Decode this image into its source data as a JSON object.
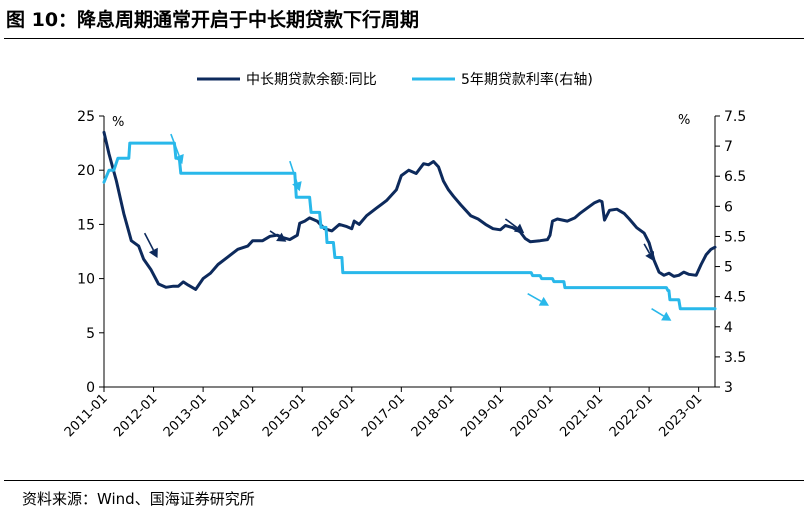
{
  "title": "图 10：降息周期通常开启于中长期贷款下行周期",
  "source": "资料来源：Wind、国海证券研究所",
  "chart_data": {
    "type": "line",
    "left_unit": "%",
    "right_unit": "%",
    "y_left": {
      "min": 0,
      "max": 25,
      "ticks": [
        "0",
        "5",
        "10",
        "15",
        "20",
        "25"
      ]
    },
    "y_right": {
      "min": 3,
      "max": 7.5,
      "ticks": [
        "3",
        "3.5",
        "4",
        "4.5",
        "5",
        "5.5",
        "6",
        "6.5",
        "7",
        "7.5"
      ]
    },
    "x_range": [
      2011.0,
      2023.33
    ],
    "x_ticks": [
      {
        "label": "2011-01",
        "x": 2011.0
      },
      {
        "label": "2012-01",
        "x": 2012.0
      },
      {
        "label": "2013-01",
        "x": 2013.0
      },
      {
        "label": "2014-01",
        "x": 2014.0
      },
      {
        "label": "2015-01",
        "x": 2015.0
      },
      {
        "label": "2016-01",
        "x": 2016.0
      },
      {
        "label": "2017-01",
        "x": 2017.0
      },
      {
        "label": "2018-01",
        "x": 2018.0
      },
      {
        "label": "2019-01",
        "x": 2019.0
      },
      {
        "label": "2020-01",
        "x": 2020.0
      },
      {
        "label": "2021-01",
        "x": 2021.0
      },
      {
        "label": "2022-01",
        "x": 2022.0
      },
      {
        "label": "2023-01",
        "x": 2023.0
      }
    ],
    "series": [
      {
        "name": "中长期贷款余额:同比",
        "axis": "left",
        "color": "#0d2a5c",
        "points": [
          [
            2011.0,
            23.5
          ],
          [
            2011.1,
            21.5
          ],
          [
            2011.25,
            19.0
          ],
          [
            2011.4,
            16.0
          ],
          [
            2011.55,
            13.5
          ],
          [
            2011.7,
            13.0
          ],
          [
            2011.8,
            11.8
          ],
          [
            2011.95,
            10.8
          ],
          [
            2012.1,
            9.5
          ],
          [
            2012.25,
            9.2
          ],
          [
            2012.4,
            9.3
          ],
          [
            2012.5,
            9.3
          ],
          [
            2012.6,
            9.7
          ],
          [
            2012.7,
            9.4
          ],
          [
            2012.85,
            9.0
          ],
          [
            2013.0,
            10.0
          ],
          [
            2013.15,
            10.5
          ],
          [
            2013.3,
            11.3
          ],
          [
            2013.5,
            12.0
          ],
          [
            2013.7,
            12.7
          ],
          [
            2013.9,
            13.0
          ],
          [
            2014.0,
            13.5
          ],
          [
            2014.2,
            13.5
          ],
          [
            2014.35,
            13.9
          ],
          [
            2014.5,
            14.0
          ],
          [
            2014.6,
            13.8
          ],
          [
            2014.75,
            13.6
          ],
          [
            2014.9,
            14.0
          ],
          [
            2014.95,
            15.1
          ],
          [
            2015.05,
            15.3
          ],
          [
            2015.15,
            15.6
          ],
          [
            2015.3,
            15.3
          ],
          [
            2015.45,
            14.6
          ],
          [
            2015.6,
            14.4
          ],
          [
            2015.75,
            15.0
          ],
          [
            2015.9,
            14.8
          ],
          [
            2016.0,
            14.6
          ],
          [
            2016.05,
            15.3
          ],
          [
            2016.15,
            15.0
          ],
          [
            2016.3,
            15.8
          ],
          [
            2016.5,
            16.5
          ],
          [
            2016.7,
            17.2
          ],
          [
            2016.9,
            18.2
          ],
          [
            2017.0,
            19.5
          ],
          [
            2017.15,
            20.0
          ],
          [
            2017.3,
            19.7
          ],
          [
            2017.45,
            20.6
          ],
          [
            2017.55,
            20.5
          ],
          [
            2017.65,
            20.8
          ],
          [
            2017.75,
            20.3
          ],
          [
            2017.85,
            19.0
          ],
          [
            2017.95,
            18.2
          ],
          [
            2018.05,
            17.6
          ],
          [
            2018.2,
            16.8
          ],
          [
            2018.4,
            15.8
          ],
          [
            2018.55,
            15.5
          ],
          [
            2018.7,
            15.0
          ],
          [
            2018.85,
            14.6
          ],
          [
            2019.0,
            14.5
          ],
          [
            2019.1,
            14.9
          ],
          [
            2019.25,
            14.7
          ],
          [
            2019.4,
            14.3
          ],
          [
            2019.5,
            13.7
          ],
          [
            2019.6,
            13.4
          ],
          [
            2019.8,
            13.5
          ],
          [
            2019.95,
            13.6
          ],
          [
            2020.0,
            14.0
          ],
          [
            2020.05,
            15.3
          ],
          [
            2020.15,
            15.5
          ],
          [
            2020.35,
            15.3
          ],
          [
            2020.5,
            15.6
          ],
          [
            2020.6,
            16.0
          ],
          [
            2020.75,
            16.5
          ],
          [
            2020.9,
            17.0
          ],
          [
            2021.0,
            17.2
          ],
          [
            2021.05,
            17.1
          ],
          [
            2021.1,
            15.4
          ],
          [
            2021.2,
            16.3
          ],
          [
            2021.35,
            16.4
          ],
          [
            2021.5,
            16.0
          ],
          [
            2021.6,
            15.5
          ],
          [
            2021.75,
            14.7
          ],
          [
            2021.9,
            14.2
          ],
          [
            2022.0,
            13.3
          ],
          [
            2022.1,
            11.7
          ],
          [
            2022.2,
            10.6
          ],
          [
            2022.3,
            10.3
          ],
          [
            2022.4,
            10.5
          ],
          [
            2022.5,
            10.2
          ],
          [
            2022.6,
            10.3
          ],
          [
            2022.7,
            10.6
          ],
          [
            2022.8,
            10.4
          ],
          [
            2022.95,
            10.3
          ],
          [
            2023.05,
            11.3
          ],
          [
            2023.15,
            12.2
          ],
          [
            2023.25,
            12.7
          ],
          [
            2023.33,
            12.9
          ]
        ]
      },
      {
        "name": "5年期贷款利率(右轴)",
        "axis": "right",
        "color": "#29b8ea",
        "points": [
          [
            2011.0,
            6.4
          ],
          [
            2011.1,
            6.6
          ],
          [
            2011.2,
            6.6
          ],
          [
            2011.28,
            6.8
          ],
          [
            2011.5,
            6.8
          ],
          [
            2011.52,
            7.05
          ],
          [
            2012.42,
            7.05
          ],
          [
            2012.45,
            6.8
          ],
          [
            2012.52,
            6.8
          ],
          [
            2012.55,
            6.55
          ],
          [
            2014.85,
            6.55
          ],
          [
            2014.88,
            6.15
          ],
          [
            2015.15,
            6.15
          ],
          [
            2015.18,
            5.9
          ],
          [
            2015.35,
            5.9
          ],
          [
            2015.38,
            5.65
          ],
          [
            2015.48,
            5.65
          ],
          [
            2015.5,
            5.4
          ],
          [
            2015.63,
            5.4
          ],
          [
            2015.66,
            5.15
          ],
          [
            2015.8,
            5.15
          ],
          [
            2015.82,
            4.9
          ],
          [
            2019.62,
            4.9
          ],
          [
            2019.65,
            4.85
          ],
          [
            2019.8,
            4.85
          ],
          [
            2019.83,
            4.8
          ],
          [
            2020.05,
            4.8
          ],
          [
            2020.08,
            4.75
          ],
          [
            2020.28,
            4.75
          ],
          [
            2020.3,
            4.65
          ],
          [
            2022.35,
            4.65
          ],
          [
            2022.38,
            4.6
          ],
          [
            2022.4,
            4.6
          ],
          [
            2022.42,
            4.45
          ],
          [
            2022.6,
            4.45
          ],
          [
            2022.63,
            4.3
          ],
          [
            2023.33,
            4.3
          ]
        ]
      }
    ],
    "arrows": [
      {
        "axis": "left",
        "from": [
          2011.82,
          14.2
        ],
        "to": [
          2012.08,
          11.9
        ],
        "color": "#0d2a5c"
      },
      {
        "axis": "left",
        "from": [
          2014.35,
          14.4
        ],
        "to": [
          2014.68,
          13.4
        ],
        "color": "#0d2a5c"
      },
      {
        "axis": "left",
        "from": [
          2019.1,
          15.5
        ],
        "to": [
          2019.48,
          14.2
        ],
        "color": "#0d2a5c"
      },
      {
        "axis": "left",
        "from": [
          2021.9,
          13.2
        ],
        "to": [
          2022.1,
          11.6
        ],
        "color": "#0d2a5c"
      },
      {
        "axis": "right",
        "from": [
          2012.35,
          7.2
        ],
        "to": [
          2012.58,
          6.7
        ],
        "color": "#29b8ea"
      },
      {
        "axis": "right",
        "from": [
          2014.75,
          6.75
        ],
        "to": [
          2014.95,
          6.25
        ],
        "color": "#29b8ea"
      },
      {
        "axis": "right",
        "from": [
          2019.55,
          4.55
        ],
        "to": [
          2019.98,
          4.35
        ],
        "color": "#29b8ea"
      },
      {
        "axis": "right",
        "from": [
          2022.05,
          4.3
        ],
        "to": [
          2022.45,
          4.1
        ],
        "color": "#29b8ea"
      }
    ]
  }
}
